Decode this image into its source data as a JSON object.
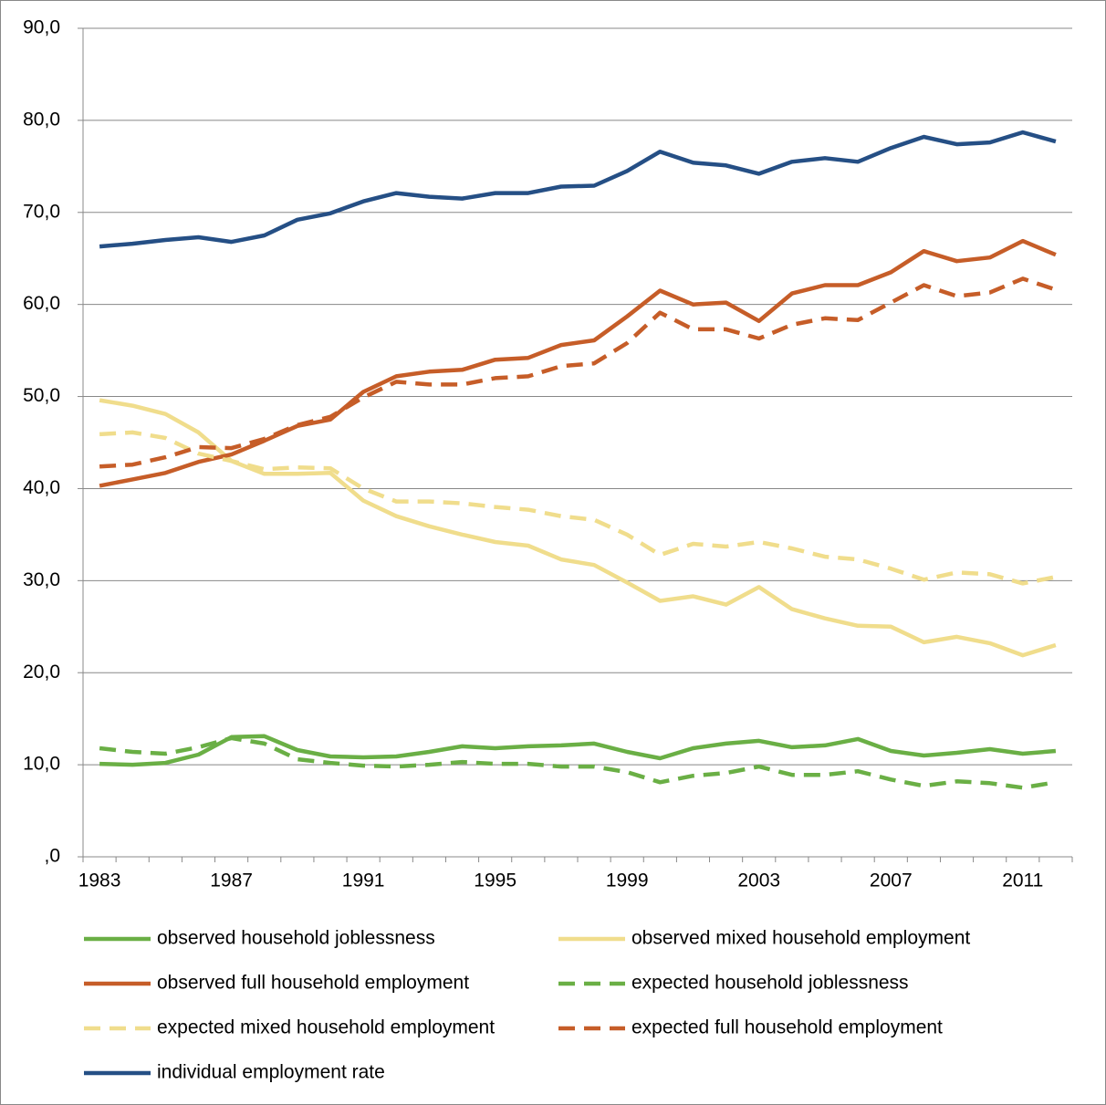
{
  "chart_data": {
    "type": "line",
    "categories": [
      "1983",
      null,
      null,
      null,
      "1987",
      null,
      null,
      null,
      "1991",
      null,
      null,
      null,
      "1995",
      null,
      null,
      null,
      "1999",
      null,
      null,
      null,
      "2003",
      null,
      null,
      null,
      "2007",
      null,
      null,
      null,
      "2011",
      null
    ],
    "ylim": [
      0,
      90
    ],
    "yticks": [
      {
        "value": 0,
        "label": ",0"
      },
      {
        "value": 10,
        "label": "10,0"
      },
      {
        "value": 20,
        "label": "20,0"
      },
      {
        "value": 30,
        "label": "30,0"
      },
      {
        "value": 40,
        "label": "40,0"
      },
      {
        "value": 50,
        "label": "50,0"
      },
      {
        "value": 60,
        "label": "60,0"
      },
      {
        "value": 70,
        "label": "70,0"
      },
      {
        "value": 80,
        "label": "80,0"
      },
      {
        "value": 90,
        "label": "90,0"
      }
    ],
    "grid": true,
    "series": [
      {
        "name": "observed household joblessness",
        "color": "#6aaf45",
        "dashed": false,
        "values": [
          10.1,
          10.0,
          10.2,
          11.1,
          13.0,
          13.1,
          11.6,
          10.9,
          10.8,
          10.9,
          11.4,
          12.0,
          11.8,
          12.0,
          12.1,
          12.3,
          11.4,
          10.7,
          11.8,
          12.3,
          12.6,
          11.9,
          12.1,
          12.8,
          11.5,
          11.0,
          11.3,
          11.7,
          11.2,
          11.5
        ]
      },
      {
        "name": "observed mixed household employment",
        "color": "#f0dd8c",
        "dashed": false,
        "values": [
          49.6,
          49.0,
          48.1,
          46.1,
          43.0,
          41.6,
          41.6,
          41.7,
          38.7,
          37.0,
          35.9,
          35.0,
          34.2,
          33.8,
          32.3,
          31.7,
          29.8,
          27.8,
          28.3,
          27.4,
          29.3,
          26.9,
          25.9,
          25.1,
          25.0,
          23.3,
          23.9,
          23.2,
          21.9,
          23.0
        ]
      },
      {
        "name": "observed full household employment",
        "color": "#c65d28",
        "dashed": false,
        "values": [
          40.3,
          41.0,
          41.7,
          42.9,
          43.7,
          45.2,
          46.8,
          47.5,
          50.5,
          52.2,
          52.7,
          52.9,
          54.0,
          54.2,
          55.6,
          56.1,
          58.7,
          61.5,
          60.0,
          60.2,
          58.2,
          61.2,
          62.1,
          62.1,
          63.5,
          65.8,
          64.7,
          65.1,
          66.9,
          65.4
        ]
      },
      {
        "name": "expected household joblessness",
        "color": "#6aaf45",
        "dashed": true,
        "values": [
          11.8,
          11.4,
          11.2,
          11.9,
          12.9,
          12.3,
          10.6,
          10.2,
          9.9,
          9.8,
          10.0,
          10.3,
          10.1,
          10.1,
          9.8,
          9.8,
          9.2,
          8.1,
          8.8,
          9.1,
          9.8,
          8.9,
          8.9,
          9.3,
          8.4,
          7.7,
          8.2,
          8.0,
          7.5,
          8.1
        ]
      },
      {
        "name": "expected mixed household employment",
        "color": "#f0dd8c",
        "dashed": true,
        "values": [
          45.9,
          46.1,
          45.5,
          43.8,
          43.0,
          42.1,
          42.3,
          42.2,
          40.0,
          38.6,
          38.6,
          38.4,
          38.0,
          37.7,
          37.0,
          36.6,
          35.0,
          32.8,
          34.0,
          33.7,
          34.2,
          33.5,
          32.6,
          32.3,
          31.3,
          30.1,
          30.9,
          30.7,
          29.7,
          30.4
        ]
      },
      {
        "name": "expected full household employment",
        "color": "#c65d28",
        "dashed": true,
        "values": [
          42.4,
          42.6,
          43.4,
          44.5,
          44.4,
          45.4,
          46.9,
          47.8,
          49.9,
          51.6,
          51.3,
          51.3,
          52.0,
          52.2,
          53.3,
          53.6,
          55.8,
          59.1,
          57.3,
          57.3,
          56.3,
          57.8,
          58.5,
          58.3,
          60.2,
          62.1,
          60.9,
          61.3,
          62.8,
          61.6
        ]
      },
      {
        "name": "individual employment rate",
        "color": "#254f85",
        "dashed": false,
        "values": [
          66.3,
          66.6,
          67.0,
          67.3,
          66.8,
          67.5,
          69.2,
          69.9,
          71.2,
          72.1,
          71.7,
          71.5,
          72.1,
          72.1,
          72.8,
          72.9,
          74.5,
          76.6,
          75.4,
          75.1,
          74.2,
          75.5,
          75.9,
          75.5,
          77.0,
          78.2,
          77.4,
          77.6,
          78.7,
          77.7
        ]
      }
    ]
  }
}
